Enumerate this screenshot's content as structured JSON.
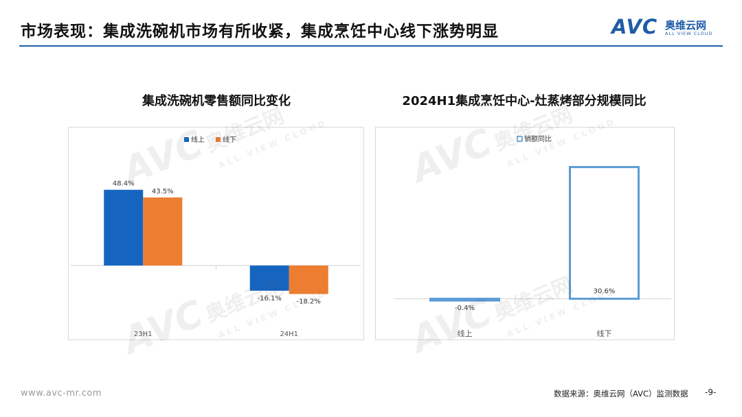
{
  "slide": {
    "title": "市场表现：集成洗碗机市场有所收紧，集成烹饪中心线下涨势明显",
    "logo_text": "AVC",
    "logo_cn": "奥维云网",
    "logo_en": "ALL VIEW CLOUD",
    "watermark_avc": "AVC",
    "watermark_cn": "奥维云网",
    "watermark_en": "ALL VIEW CLOUD",
    "footer_url": "www.avc-mr.com",
    "footer_source": "数据来源：奥维云网（AVC）监测数据",
    "page_number": "-9-"
  },
  "colors": {
    "accent": "#1f5ca8",
    "online": "#1565c0",
    "offline": "#ed7d31",
    "yoy_bar": "#5b9bd5"
  },
  "chart_data": [
    {
      "type": "bar",
      "title": "集成洗碗机零售额同比变化",
      "categories": [
        "23H1",
        "24H1"
      ],
      "series": [
        {
          "name": "线上",
          "values": [
            48.4,
            -16.1
          ],
          "labels": [
            "48.4%",
            "-16.1%"
          ],
          "color": "#1565c0"
        },
        {
          "name": "线下",
          "values": [
            43.5,
            -18.2
          ],
          "labels": [
            "43.5%",
            "-18.2%"
          ],
          "color": "#ed7d31"
        }
      ],
      "ylim": [
        -35,
        75
      ],
      "legend": "top-left",
      "grid": false
    },
    {
      "type": "bar",
      "title": "2024H1集成烹饪中心-灶蒸烤部分规模同比",
      "categories": [
        "线上",
        "线下"
      ],
      "series": [
        {
          "name": "销额同比",
          "values": [
            -0.4,
            30.6
          ],
          "labels": [
            "-0.4%",
            "30.6%"
          ],
          "color": "#5b9bd5"
        }
      ],
      "ylim": [
        -5,
        35
      ],
      "legend": "top-left",
      "grid": false
    }
  ]
}
